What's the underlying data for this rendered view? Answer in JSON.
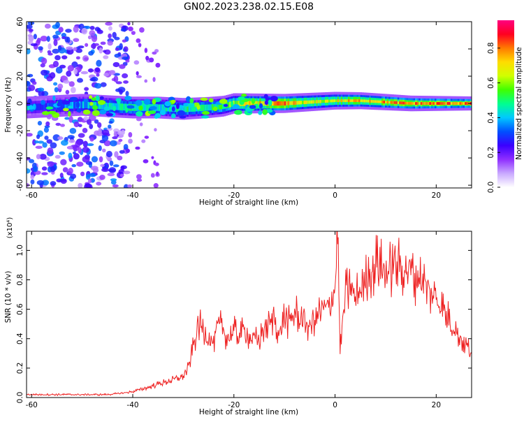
{
  "figure_title": "GN02.2023.238.02.15.E08",
  "colorbar": {
    "label": "Normalized spectral amplitude",
    "ticks": [
      "0.0",
      "0.2",
      "0.4",
      "0.6",
      "0.8"
    ],
    "tick_values": [
      0.0,
      0.2,
      0.4,
      0.6,
      0.8
    ],
    "range": [
      0.0,
      0.96
    ],
    "colormap": [
      "#ffffff",
      "#c9a8ff",
      "#8f2fff",
      "#3a00ff",
      "#0050ff",
      "#00c8ff",
      "#00ff90",
      "#40ff00",
      "#d0ff00",
      "#ffdc00",
      "#ff7a00",
      "#ff0020",
      "#ff0080"
    ]
  },
  "chart_data": [
    {
      "type": "heatmap",
      "title": "",
      "xlabel": "Height of straight line (km)",
      "ylabel": "Frequency (Hz)",
      "xlim": [
        -61,
        27
      ],
      "ylim": [
        -62,
        60
      ],
      "xticks": [
        -60,
        -40,
        -20,
        0,
        20
      ],
      "xtick_labels": [
        "-60",
        "-40",
        "-20",
        "0",
        "20"
      ],
      "yticks": [
        -60,
        -40,
        -20,
        0,
        20,
        40,
        60
      ],
      "ytick_labels": [
        "-60",
        "-40",
        "-20",
        "0",
        "20",
        "40",
        "60"
      ],
      "ridge": {
        "description_points_x": [
          -61,
          -50,
          -40,
          -35,
          -30,
          -25,
          -22,
          -20,
          -15,
          -10,
          -5,
          0,
          5,
          10,
          15,
          20,
          27
        ],
        "center_freq_hz": [
          -3,
          -1,
          -3,
          -3,
          -4,
          -3,
          -2,
          0,
          0,
          0,
          1,
          2,
          2,
          1,
          0,
          0,
          0
        ],
        "peak_amplitude": [
          0.3,
          0.45,
          0.55,
          0.5,
          0.55,
          0.55,
          0.6,
          0.7,
          0.85,
          0.9,
          0.75,
          0.8,
          0.88,
          0.9,
          0.92,
          0.95,
          0.95
        ]
      }
    },
    {
      "type": "line",
      "title": "",
      "xlabel": "Height of straight line (km)",
      "ylabel": "SNR (10 * v/v)",
      "y_scale_label": "(x10⁴)",
      "xlim": [
        -61,
        27
      ],
      "ylim": [
        0.0,
        1.13
      ],
      "xticks": [
        -60,
        -40,
        -20,
        0,
        20
      ],
      "xtick_labels": [
        "-60",
        "-40",
        "-20",
        "0",
        "20"
      ],
      "yticks": [
        0.0,
        0.2,
        0.4,
        0.6,
        0.8,
        1.0
      ],
      "ytick_labels": [
        "0.0",
        "0.2",
        "0.4",
        "0.6",
        "0.8",
        "1.0"
      ],
      "series": [
        {
          "color": "#ee2222",
          "x": [
            -61,
            -55,
            -50,
            -45,
            -42,
            -40,
            -38,
            -35,
            -32,
            -30,
            -29,
            -28,
            -27,
            -26,
            -25,
            -24,
            -23,
            -22,
            -21,
            -20,
            -19,
            -18,
            -17,
            -16,
            -15,
            -14,
            -13,
            -12,
            -11,
            -10,
            -9,
            -8,
            -7,
            -6,
            -5,
            -4,
            -3,
            -2,
            -1,
            0,
            0.5,
            1,
            2,
            3,
            4,
            5,
            6,
            7,
            8,
            9,
            10,
            11,
            12,
            13,
            14,
            15,
            16,
            17,
            18,
            19,
            20,
            21,
            22,
            23,
            24,
            25,
            26,
            27
          ],
          "values": [
            0.02,
            0.02,
            0.02,
            0.02,
            0.03,
            0.04,
            0.06,
            0.09,
            0.12,
            0.15,
            0.2,
            0.35,
            0.5,
            0.45,
            0.4,
            0.38,
            0.5,
            0.45,
            0.4,
            0.45,
            0.42,
            0.45,
            0.42,
            0.4,
            0.38,
            0.48,
            0.5,
            0.56,
            0.42,
            0.55,
            0.5,
            0.58,
            0.55,
            0.52,
            0.48,
            0.55,
            0.58,
            0.6,
            0.62,
            0.75,
            1.13,
            0.3,
            0.7,
            0.75,
            0.68,
            0.72,
            0.8,
            0.85,
            0.92,
            0.88,
            0.85,
            0.87,
            0.92,
            0.88,
            0.9,
            0.85,
            0.82,
            0.8,
            0.76,
            0.7,
            0.68,
            0.62,
            0.56,
            0.5,
            0.45,
            0.4,
            0.35,
            0.3
          ]
        }
      ]
    }
  ]
}
